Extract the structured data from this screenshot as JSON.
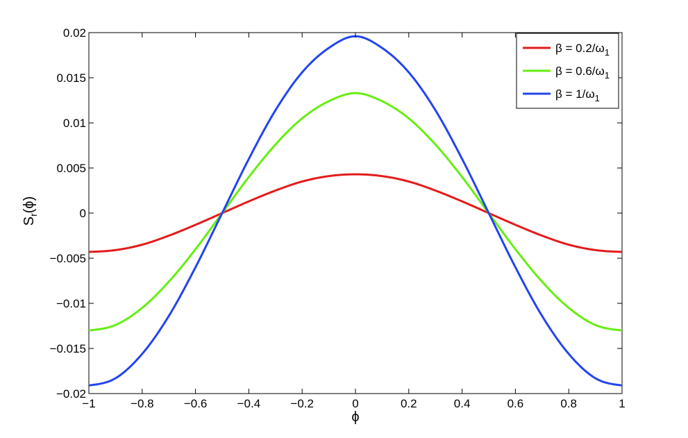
{
  "chart_data": {
    "type": "line",
    "xlabel": "ϕ",
    "ylabel": {
      "main": "S",
      "sub": "r",
      "tail": "(ϕ)"
    },
    "xlim": [
      -1,
      1
    ],
    "ylim": [
      -0.02,
      0.02
    ],
    "x_ticks": [
      -1,
      -0.8,
      -0.6,
      -0.4,
      -0.2,
      0,
      0.2,
      0.4,
      0.6,
      0.8,
      1
    ],
    "x_tick_labels": [
      "−1",
      "−0.8",
      "−0.6",
      "−0.4",
      "−0.2",
      "0",
      "0.2",
      "0.4",
      "0.6",
      "0.8",
      "1"
    ],
    "y_ticks": [
      -0.02,
      -0.015,
      -0.01,
      -0.005,
      0,
      0.005,
      0.01,
      0.015,
      0.02
    ],
    "y_tick_labels": [
      "−0.02",
      "−0.015",
      "−0.01",
      "−0.005",
      "0",
      "0.005",
      "0.01",
      "0.015",
      "0.02"
    ],
    "grid": false,
    "legend_position": "top-right",
    "x": [
      -1,
      -0.9,
      -0.8,
      -0.7,
      -0.6,
      -0.5,
      -0.4,
      -0.3,
      -0.2,
      -0.1,
      0,
      0.1,
      0.2,
      0.3,
      0.4,
      0.5,
      0.6,
      0.7,
      0.8,
      0.9,
      1
    ],
    "series": [
      {
        "name": "β = 0.2/ω",
        "name_sub": "1",
        "color": "#e41a1a",
        "values": [
          -0.0043,
          -0.0041,
          -0.0035,
          -0.0025,
          -0.0013,
          0,
          0.0013,
          0.0025,
          0.0035,
          0.0041,
          0.0043,
          0.0041,
          0.0035,
          0.0025,
          0.0013,
          0,
          -0.0013,
          -0.0025,
          -0.0035,
          -0.0041,
          -0.0043
        ]
      },
      {
        "name": "β = 0.6/ω",
        "name_sub": "1",
        "color": "#66ee11",
        "values": [
          -0.013,
          -0.0124,
          -0.0105,
          -0.0076,
          -0.004,
          0,
          0.004,
          0.0076,
          0.0105,
          0.0124,
          0.0133,
          0.0124,
          0.0105,
          0.0076,
          0.004,
          0,
          -0.004,
          -0.0076,
          -0.0105,
          -0.0124,
          -0.013
        ]
      },
      {
        "name": "β = 1/ω",
        "name_sub": "1",
        "color": "#2244ee",
        "values": [
          -0.0191,
          -0.0183,
          -0.0156,
          -0.0114,
          -0.006,
          0,
          0.006,
          0.0114,
          0.0156,
          0.0183,
          0.0196,
          0.0183,
          0.0156,
          0.0114,
          0.006,
          0,
          -0.006,
          -0.0114,
          -0.0156,
          -0.0183,
          -0.0191
        ]
      }
    ]
  }
}
